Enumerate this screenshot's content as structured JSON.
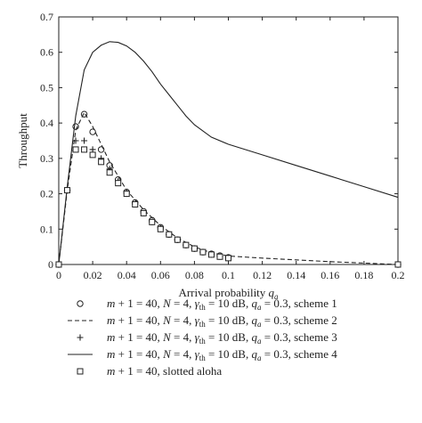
{
  "chart_data": {
    "type": "line",
    "xlabel": "Arrival probability",
    "xlabel_symbol": "q",
    "xlabel_subscript": "a",
    "ylabel": "Throughput",
    "xlim": [
      0,
      0.2
    ],
    "ylim": [
      0,
      0.7
    ],
    "xticks": [
      "0",
      "0.02",
      "0.04",
      "0.06",
      "0.08",
      "0.1",
      "0.12",
      "0.14",
      "0.16",
      "0.18",
      "0.2"
    ],
    "yticks": [
      "0",
      "0.1",
      "0.2",
      "0.3",
      "0.4",
      "0.5",
      "0.6",
      "0.7"
    ],
    "xtick_values": [
      0,
      0.02,
      0.04,
      0.06,
      0.08,
      0.1,
      0.12,
      0.14,
      0.16,
      0.18,
      0.2
    ],
    "ytick_values": [
      0,
      0.1,
      0.2,
      0.3,
      0.4,
      0.5,
      0.6,
      0.7
    ],
    "grid": false,
    "legend_position": "below",
    "series": [
      {
        "name": "m + 1 = 40, N = 4, γth = 10 dB, qa = 0.3, scheme 1",
        "legend_symbol": "circle",
        "style": "marker",
        "x": [
          0,
          0.005,
          0.01,
          0.015,
          0.02,
          0.025,
          0.03,
          0.035,
          0.04,
          0.045,
          0.05,
          0.055,
          0.06,
          0.065,
          0.07,
          0.075,
          0.08,
          0.085,
          0.09,
          0.095,
          0.1,
          0.2
        ],
        "y": [
          0,
          0.21,
          0.39,
          0.425,
          0.375,
          0.325,
          0.28,
          0.24,
          0.205,
          0.175,
          0.15,
          0.125,
          0.105,
          0.085,
          0.07,
          0.055,
          0.045,
          0.035,
          0.03,
          0.025,
          0.02,
          0.0
        ]
      },
      {
        "name": "m + 1 = 40, N = 4, γth = 10 dB, qa = 0.3, scheme 2",
        "legend_symbol": "dashed-line",
        "style": "dashed",
        "x": [
          0,
          0.005,
          0.01,
          0.015,
          0.02,
          0.025,
          0.03,
          0.035,
          0.04,
          0.05,
          0.06,
          0.07,
          0.08,
          0.09,
          0.1,
          0.12,
          0.14,
          0.16,
          0.18,
          0.2
        ],
        "y": [
          0,
          0.21,
          0.38,
          0.43,
          0.39,
          0.34,
          0.29,
          0.25,
          0.21,
          0.155,
          0.11,
          0.075,
          0.05,
          0.033,
          0.024,
          0.018,
          0.013,
          0.008,
          0.004,
          0.0
        ]
      },
      {
        "name": "m + 1 = 40, N = 4, γth = 10 dB, qa = 0.3, scheme 3",
        "legend_symbol": "plus",
        "style": "marker",
        "x": [
          0,
          0.005,
          0.01,
          0.015,
          0.02,
          0.025,
          0.03,
          0.035,
          0.04,
          0.045,
          0.05,
          0.055,
          0.06,
          0.065,
          0.07,
          0.075,
          0.08,
          0.085,
          0.09,
          0.095,
          0.1
        ],
        "y": [
          0,
          0.21,
          0.35,
          0.35,
          0.325,
          0.3,
          0.27,
          0.235,
          0.2,
          0.17,
          0.145,
          0.12,
          0.1,
          0.085,
          0.07,
          0.055,
          0.045,
          0.035,
          0.028,
          0.022,
          0.02
        ]
      },
      {
        "name": "m + 1 = 40, N = 4, γth = 10 dB, qa = 0.3, scheme 4",
        "legend_symbol": "solid-line",
        "style": "solid",
        "x": [
          0,
          0.005,
          0.01,
          0.015,
          0.02,
          0.025,
          0.03,
          0.035,
          0.04,
          0.045,
          0.05,
          0.055,
          0.06,
          0.065,
          0.07,
          0.075,
          0.08,
          0.09,
          0.1,
          0.12,
          0.14,
          0.16,
          0.18,
          0.2
        ],
        "y": [
          0,
          0.22,
          0.42,
          0.55,
          0.6,
          0.62,
          0.63,
          0.628,
          0.618,
          0.6,
          0.575,
          0.545,
          0.51,
          0.48,
          0.45,
          0.42,
          0.395,
          0.36,
          0.34,
          0.31,
          0.28,
          0.25,
          0.22,
          0.19
        ]
      },
      {
        "name": "m + 1 = 40, slotted aloha",
        "legend_symbol": "square",
        "style": "marker",
        "x": [
          0,
          0.005,
          0.01,
          0.015,
          0.02,
          0.025,
          0.03,
          0.035,
          0.04,
          0.045,
          0.05,
          0.055,
          0.06,
          0.065,
          0.07,
          0.075,
          0.08,
          0.085,
          0.09,
          0.095,
          0.1,
          0.2
        ],
        "y": [
          0,
          0.21,
          0.325,
          0.325,
          0.31,
          0.29,
          0.26,
          0.23,
          0.2,
          0.17,
          0.145,
          0.12,
          0.1,
          0.085,
          0.07,
          0.055,
          0.045,
          0.035,
          0.028,
          0.022,
          0.018,
          0.0
        ]
      }
    ]
  },
  "legend": [
    {
      "symbol": "circle",
      "parts": [
        "m",
        " + 1 = 40, ",
        "N",
        " = 4, ",
        "γ",
        "th",
        " = 10 dB, ",
        "q",
        "a",
        " = 0.3, scheme 1"
      ]
    },
    {
      "symbol": "dashed-line",
      "parts": [
        "m",
        " + 1 = 40, ",
        "N",
        " = 4, ",
        "γ",
        "th",
        " = 10 dB, ",
        "q",
        "a",
        " = 0.3, scheme 2"
      ]
    },
    {
      "symbol": "plus",
      "parts": [
        "m",
        " + 1 = 40, ",
        "N",
        " = 4, ",
        "γ",
        "th",
        " = 10 dB, ",
        "q",
        "a",
        " = 0.3, scheme 3"
      ]
    },
    {
      "symbol": "solid-line",
      "parts": [
        "m",
        " + 1 = 40, ",
        "N",
        " = 4, ",
        "γ",
        "th",
        " = 10 dB, ",
        "q",
        "a",
        " = 0.3, scheme 4"
      ]
    },
    {
      "symbol": "square",
      "parts": [
        "m",
        " + 1 = 40, slotted aloha"
      ]
    }
  ],
  "colors": {
    "ink": "#222222",
    "background": "#ffffff"
  }
}
